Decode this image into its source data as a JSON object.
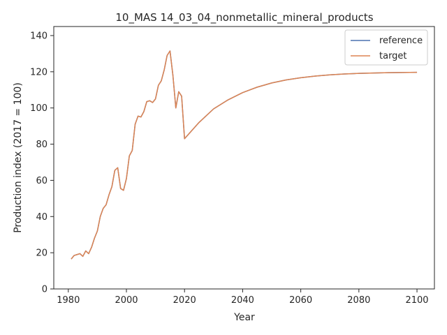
{
  "chart_data": {
    "type": "line",
    "title": "10_MAS 14_03_04_nonmetallic_mineral_products",
    "xlabel": "Year",
    "ylabel": "Production index (2017 = 100)",
    "xlim": [
      1975,
      2106
    ],
    "ylim": [
      0,
      145
    ],
    "xticks": [
      1980,
      2000,
      2020,
      2040,
      2060,
      2080,
      2100
    ],
    "yticks": [
      0,
      20,
      40,
      60,
      80,
      100,
      120,
      140
    ],
    "grid": false,
    "legend_position": "top-right",
    "series": [
      {
        "name": "reference",
        "color": "#4c72b0",
        "x": [
          1981,
          1982,
          1983,
          1984,
          1985,
          1986,
          1987,
          1988,
          1989,
          1990,
          1991,
          1992,
          1993,
          1994,
          1995,
          1996,
          1997,
          1998,
          1999,
          2000,
          2001,
          2002,
          2003,
          2004,
          2005,
          2006,
          2007,
          2008,
          2009,
          2010,
          2011,
          2012,
          2013,
          2014,
          2015,
          2016,
          2017,
          2018,
          2019,
          2020,
          2025,
          2030,
          2035,
          2040,
          2045,
          2050,
          2055,
          2060,
          2065,
          2070,
          2075,
          2080,
          2085,
          2090,
          2095,
          2100
        ],
        "y": [
          16.5,
          18.5,
          19,
          19.5,
          18,
          21,
          19.5,
          23,
          28,
          32,
          40,
          44.5,
          46.5,
          52,
          56.5,
          65.5,
          67,
          55.5,
          54.5,
          61,
          73.5,
          76.5,
          91,
          95.5,
          95,
          98,
          103.5,
          104,
          103,
          105,
          112.5,
          115,
          121,
          129,
          131.5,
          118,
          100,
          109,
          106.5,
          83,
          92,
          99.5,
          104.5,
          108.5,
          111.5,
          113.8,
          115.5,
          116.7,
          117.6,
          118.3,
          118.8,
          119.1,
          119.3,
          119.5,
          119.6,
          119.7
        ]
      },
      {
        "name": "target",
        "color": "#dd8452",
        "x": [
          1981,
          1982,
          1983,
          1984,
          1985,
          1986,
          1987,
          1988,
          1989,
          1990,
          1991,
          1992,
          1993,
          1994,
          1995,
          1996,
          1997,
          1998,
          1999,
          2000,
          2001,
          2002,
          2003,
          2004,
          2005,
          2006,
          2007,
          2008,
          2009,
          2010,
          2011,
          2012,
          2013,
          2014,
          2015,
          2016,
          2017,
          2018,
          2019,
          2020,
          2025,
          2030,
          2035,
          2040,
          2045,
          2050,
          2055,
          2060,
          2065,
          2070,
          2075,
          2080,
          2085,
          2090,
          2095,
          2100
        ],
        "y": [
          16.5,
          18.5,
          19,
          19.5,
          18,
          21,
          19.5,
          23,
          28,
          32,
          40,
          44.5,
          46.5,
          52,
          56.5,
          65.5,
          67,
          55.5,
          54.5,
          61,
          73.5,
          76.5,
          91,
          95.5,
          95,
          98,
          103.5,
          104,
          103,
          105,
          112.5,
          115,
          121,
          129,
          131.5,
          118,
          100,
          109,
          106.5,
          83,
          92,
          99.5,
          104.5,
          108.5,
          111.5,
          113.8,
          115.5,
          116.7,
          117.6,
          118.3,
          118.8,
          119.1,
          119.3,
          119.5,
          119.6,
          119.7
        ]
      }
    ]
  }
}
